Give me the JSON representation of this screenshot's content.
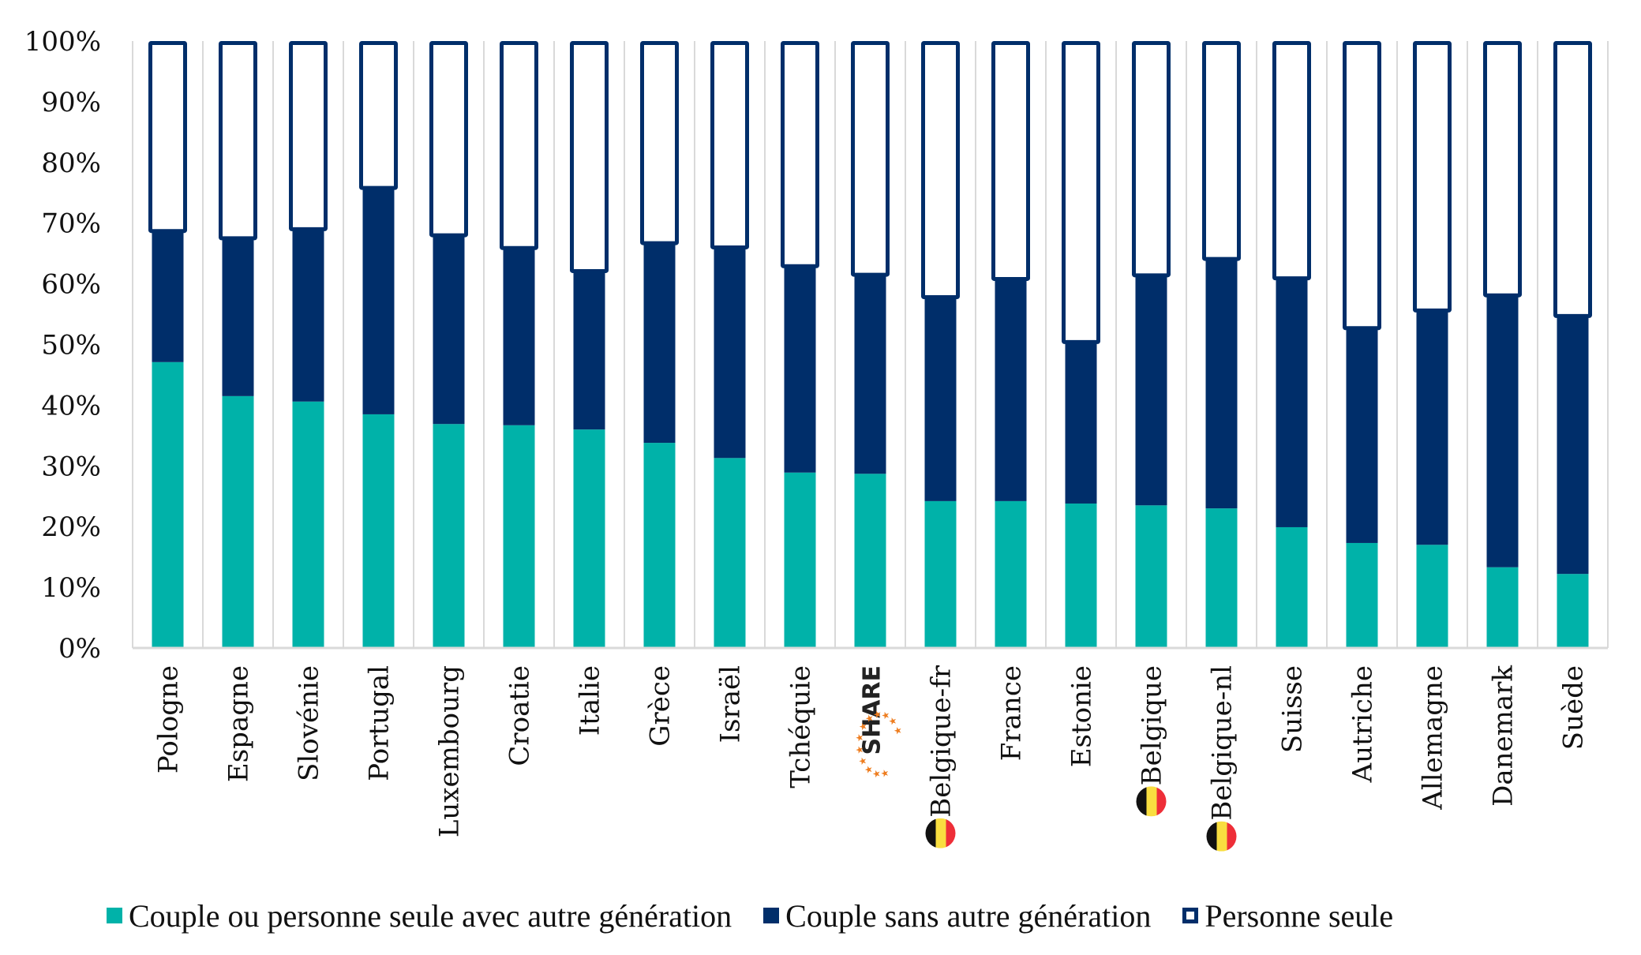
{
  "chart_data": {
    "type": "bar",
    "stacked": true,
    "normalized": true,
    "title": "",
    "xlabel": "",
    "ylabel": "",
    "ylim": [
      0,
      100
    ],
    "y_ticks": [
      "0%",
      "10%",
      "20%",
      "30%",
      "40%",
      "50%",
      "60%",
      "70%",
      "80%",
      "90%",
      "100%"
    ],
    "grid": "vertical category separators",
    "legend_position": "bottom",
    "categories": [
      "Pologne",
      "Espagne",
      "Slovénie",
      "Portugal",
      "Luxembourg",
      "Croatie",
      "Italie",
      "Grèce",
      "Israël",
      "Tchéquie",
      "SHARE",
      "Belgique-fr",
      "France",
      "Estonie",
      "Belgique",
      "Belgique-nl",
      "Suisse",
      "Autriche",
      "Allemagne",
      "Danemark",
      "Suède"
    ],
    "category_markers": {
      "SHARE": "share-logo",
      "Belgique-fr": "belgium-flag",
      "Belgique": "belgium-flag",
      "Belgique-nl": "belgium-flag"
    },
    "series": [
      {
        "name": "Couple ou personne seule avec autre génération",
        "color": "#00b2a9",
        "style": "filled",
        "values": [
          47.1,
          41.5,
          40.6,
          38.5,
          36.9,
          36.7,
          36.0,
          33.8,
          31.3,
          28.9,
          28.7,
          24.2,
          24.2,
          23.8,
          23.5,
          23.0,
          19.9,
          17.3,
          17.0,
          13.3,
          12.2
        ]
      },
      {
        "name": "Couple sans autre génération",
        "color": "#002e6a",
        "style": "filled",
        "values": [
          21.6,
          26.0,
          28.4,
          37.3,
          31.1,
          29.2,
          26.1,
          32.9,
          34.7,
          34.0,
          32.8,
          33.6,
          36.6,
          26.6,
          37.9,
          41.1,
          41.0,
          35.4,
          38.6,
          44.8,
          42.5
        ]
      },
      {
        "name": "Personne seule",
        "color": "#002e6a",
        "style": "outline",
        "values": [
          31.3,
          32.5,
          31.0,
          24.2,
          32.0,
          34.1,
          37.9,
          33.3,
          34.0,
          37.1,
          38.5,
          42.2,
          39.2,
          49.6,
          38.6,
          35.9,
          39.1,
          47.3,
          44.4,
          41.9,
          45.3
        ]
      }
    ]
  },
  "legend": {
    "items": [
      {
        "label": "Couple ou personne seule avec autre génération",
        "swatch": "teal-filled"
      },
      {
        "label": "Couple sans autre génération",
        "swatch": "navy-filled"
      },
      {
        "label": "Personne seule",
        "swatch": "navy-outline"
      }
    ]
  },
  "share_logo": {
    "text": "SHARE"
  }
}
